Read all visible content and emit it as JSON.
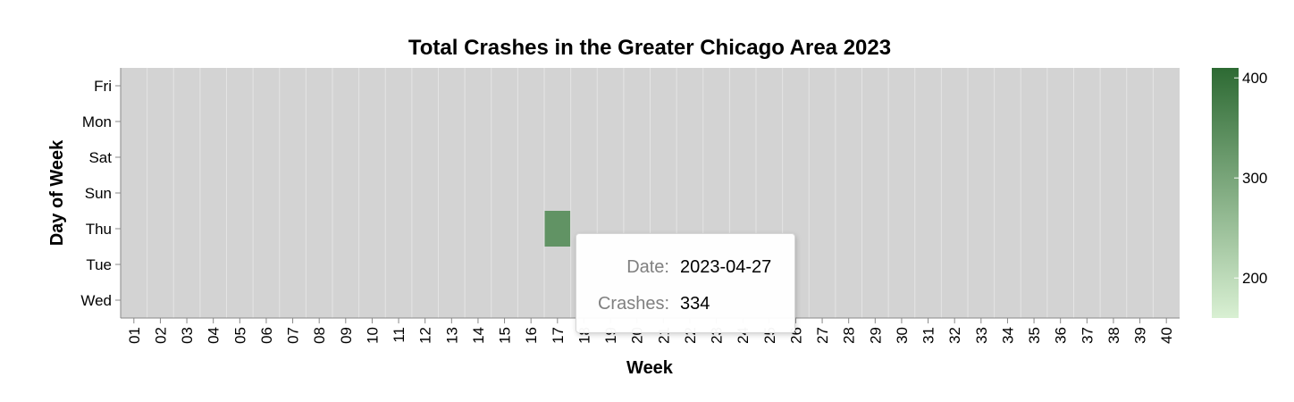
{
  "chart_data": {
    "type": "heatmap",
    "title": "Total Crashes in the Greater Chicago Area 2023",
    "xlabel": "Week",
    "ylabel": "Day of Week",
    "x_categories": [
      "01",
      "02",
      "03",
      "04",
      "05",
      "06",
      "07",
      "08",
      "09",
      "10",
      "11",
      "12",
      "13",
      "14",
      "15",
      "16",
      "17",
      "18",
      "19",
      "20",
      "21",
      "22",
      "23",
      "24",
      "25",
      "26",
      "27",
      "28",
      "29",
      "30",
      "31",
      "32",
      "33",
      "34",
      "35",
      "36",
      "37",
      "38",
      "39",
      "40"
    ],
    "y_categories": [
      "Fri",
      "Mon",
      "Sat",
      "Sun",
      "Thu",
      "Tue",
      "Wed"
    ],
    "cells": [
      {
        "week": "17",
        "day": "Thu",
        "value": 334,
        "date": "2023-04-27"
      }
    ],
    "empty_cell_color": "#d3d3d3",
    "color_scale": {
      "domain": [
        160,
        410
      ],
      "range": [
        "#d9f0d3",
        "#2d6a33"
      ],
      "tick_values": [
        200,
        300,
        400
      ],
      "tick_labels": [
        "200",
        "300",
        "400"
      ]
    },
    "legend_position": "right"
  },
  "tooltip": {
    "date_label": "Date:",
    "date_value": "2023-04-27",
    "crashes_label": "Crashes:",
    "crashes_value": "334"
  }
}
